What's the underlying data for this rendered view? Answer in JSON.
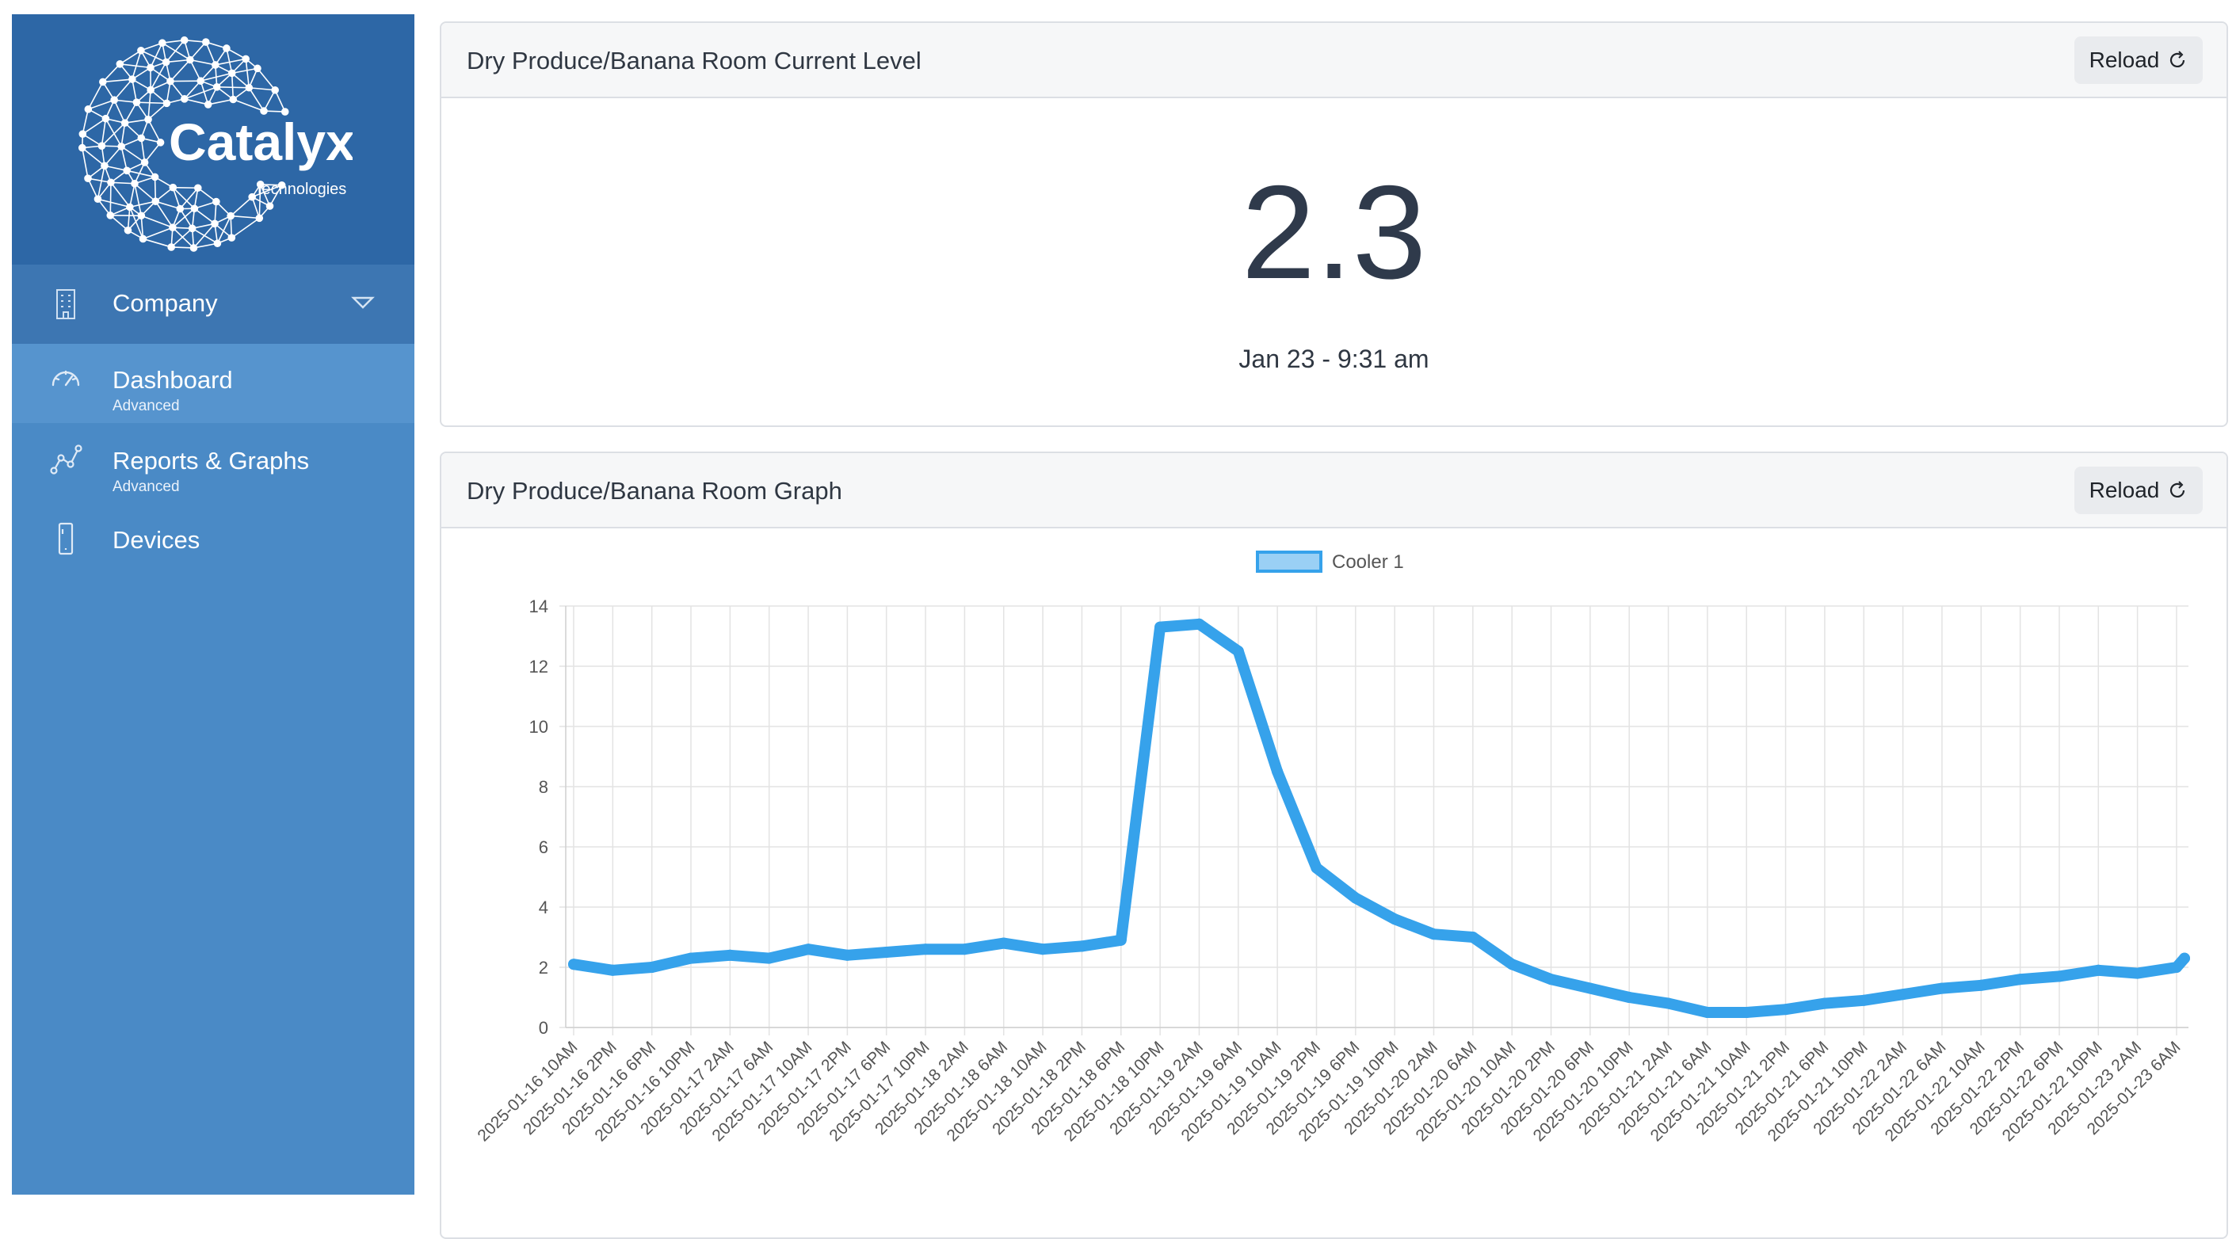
{
  "sidebar": {
    "logo": {
      "name": "Catalyx",
      "tagline": "technologies"
    },
    "company": {
      "label": "Company",
      "icon": "building-icon"
    },
    "items": [
      {
        "label": "Dashboard",
        "sub": "Advanced",
        "icon": "speedometer-icon",
        "active": true
      },
      {
        "label": "Reports & Graphs",
        "sub": "Advanced",
        "icon": "graph-nodes-icon",
        "active": false
      },
      {
        "label": "Devices",
        "sub": "",
        "icon": "device-icon",
        "active": false
      }
    ]
  },
  "current_level": {
    "title": "Dry Produce/Banana Room Current Level",
    "reload_label": "Reload",
    "value": "2.3",
    "timestamp": "Jan 23 - 9:31 am"
  },
  "graph": {
    "title": "Dry Produce/Banana Room Graph",
    "reload_label": "Reload"
  },
  "colors": {
    "sidebar": "#4a8ac6",
    "brand": "#2d67a6",
    "series": "#36a2eb",
    "series_fill": "#9ad0f5"
  },
  "chart_data": {
    "type": "line",
    "legend": "top-center",
    "grid": true,
    "ylim": [
      0,
      14
    ],
    "yticks": [
      0,
      2,
      4,
      6,
      8,
      10,
      12,
      14
    ],
    "xlabel": "",
    "ylabel": "",
    "categories": [
      "2025-01-16 10AM",
      "2025-01-16 2PM",
      "2025-01-16 6PM",
      "2025-01-16 10PM",
      "2025-01-17 2AM",
      "2025-01-17 6AM",
      "2025-01-17 10AM",
      "2025-01-17 2PM",
      "2025-01-17 6PM",
      "2025-01-17 10PM",
      "2025-01-18 2AM",
      "2025-01-18 6AM",
      "2025-01-18 10AM",
      "2025-01-18 2PM",
      "2025-01-18 6PM",
      "2025-01-18 10PM",
      "2025-01-19 2AM",
      "2025-01-19 6AM",
      "2025-01-19 10AM",
      "2025-01-19 2PM",
      "2025-01-19 6PM",
      "2025-01-19 10PM",
      "2025-01-20 2AM",
      "2025-01-20 6AM",
      "2025-01-20 10AM",
      "2025-01-20 2PM",
      "2025-01-20 6PM",
      "2025-01-20 10PM",
      "2025-01-21 2AM",
      "2025-01-21 6AM",
      "2025-01-21 10AM",
      "2025-01-21 2PM",
      "2025-01-21 6PM",
      "2025-01-21 10PM",
      "2025-01-22 2AM",
      "2025-01-22 6AM",
      "2025-01-22 10AM",
      "2025-01-22 2PM",
      "2025-01-22 6PM",
      "2025-01-22 10PM",
      "2025-01-23 2AM",
      "2025-01-23 6AM"
    ],
    "series": [
      {
        "name": "Cooler 1",
        "values": [
          2.1,
          1.9,
          2.0,
          2.3,
          2.4,
          2.3,
          2.6,
          2.4,
          2.5,
          2.6,
          2.6,
          2.8,
          2.6,
          2.7,
          2.9,
          13.3,
          13.4,
          12.5,
          8.5,
          5.3,
          4.3,
          3.6,
          3.1,
          3.0,
          2.1,
          1.6,
          1.3,
          1.0,
          0.8,
          0.5,
          0.5,
          0.6,
          0.8,
          0.9,
          1.1,
          1.3,
          1.4,
          1.6,
          1.7,
          1.9,
          1.8,
          2.0
        ],
        "end_value": 2.3
      }
    ]
  }
}
